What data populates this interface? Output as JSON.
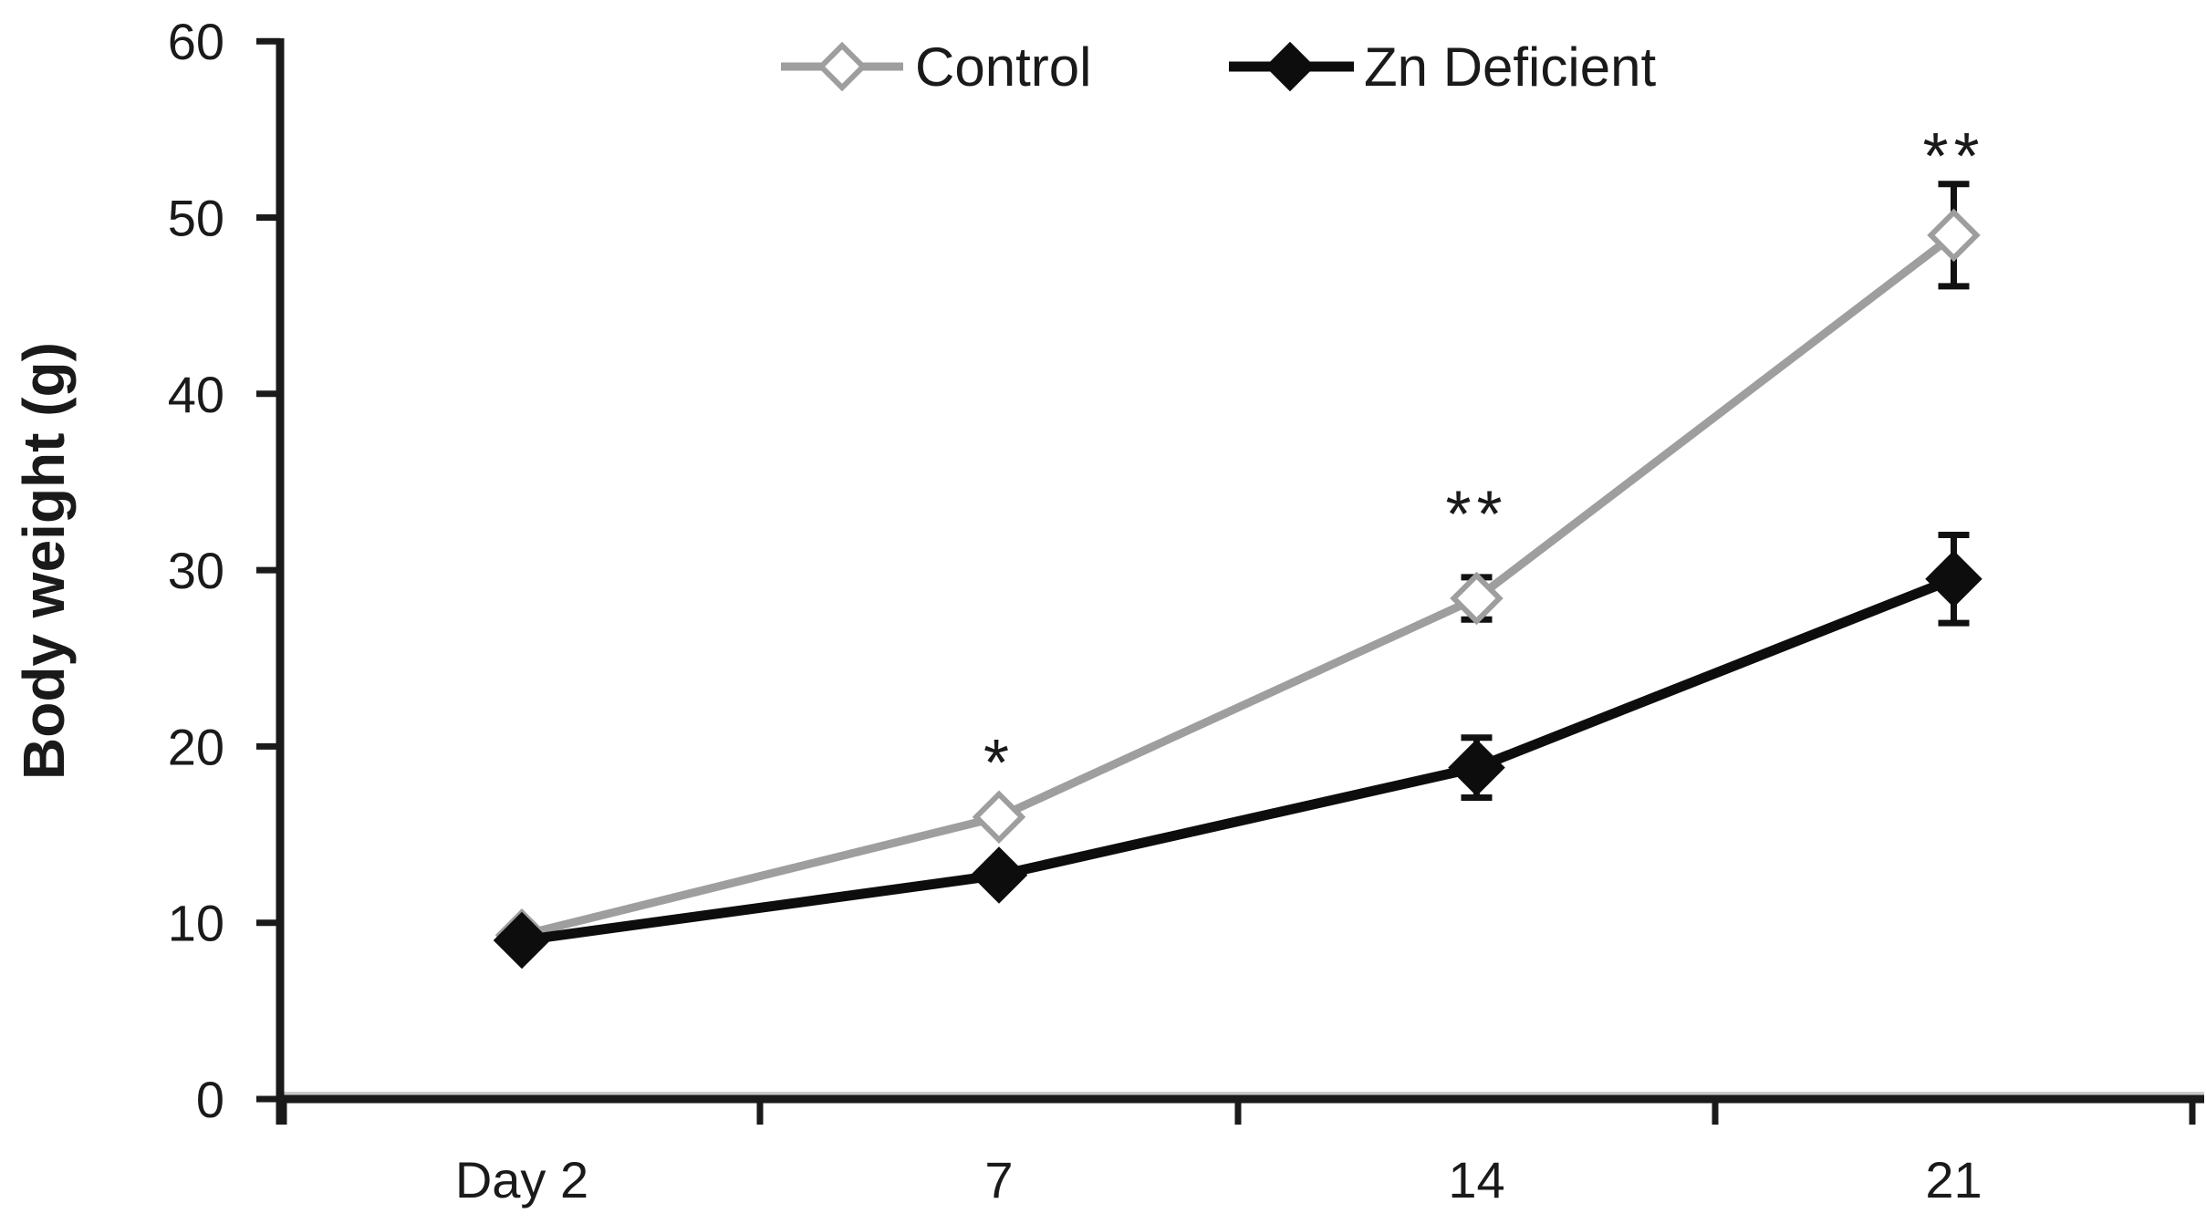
{
  "figure": {
    "background": "#ffffff",
    "text_color": "#1a1a1a"
  },
  "chart_data": {
    "type": "line",
    "title": "",
    "ylabel": "Body weight (g)",
    "xlabel": "",
    "categories": [
      "Day 2",
      "7",
      "14",
      "21"
    ],
    "yticks": [
      0,
      10,
      20,
      30,
      40,
      50,
      60
    ],
    "ylim": [
      0,
      60
    ],
    "grid": false,
    "legend_position": "top-center",
    "series": [
      {
        "name": "Control",
        "marker": "open-diamond",
        "color": "#9e9e9e",
        "marker_fill": "#ffffff",
        "values": [
          9.3,
          16.0,
          28.4,
          49.0
        ],
        "errors": [
          0,
          0,
          1.2,
          2.9
        ]
      },
      {
        "name": "Zn Deficient",
        "marker": "filled-diamond",
        "color": "#0d0d0d",
        "marker_fill": "#0d0d0d",
        "values": [
          9.0,
          12.7,
          18.8,
          29.5
        ],
        "errors": [
          0,
          0,
          1.7,
          2.5
        ]
      }
    ],
    "error_bar_color": "#111111",
    "annotations": [
      {
        "text": "*",
        "category_index": 1,
        "y_value": 19.7
      },
      {
        "text": "**",
        "category_index": 2,
        "y_value": 33.8
      },
      {
        "text": "**",
        "category_index": 3,
        "y_value": 54.1
      }
    ]
  }
}
